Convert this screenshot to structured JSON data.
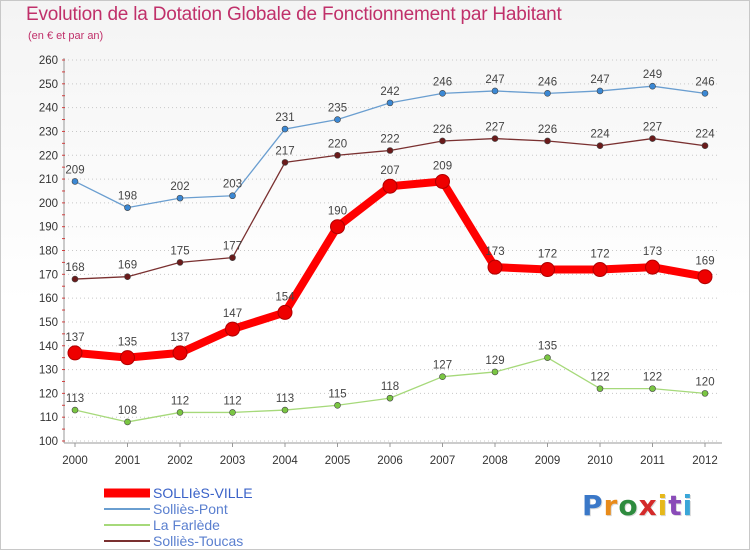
{
  "title": "Evolution de la Dotation Globale de Fonctionnement par Habitant",
  "subtitle": "(en € et par an)",
  "logo": {
    "text": "Proxiti",
    "letter_colors": [
      "#3a78c8",
      "#e88b1a",
      "#2e8b3e",
      "#d42a2a",
      "#e6b81a",
      "#8a4bb8",
      "#3aa6d8"
    ]
  },
  "chart_data": {
    "type": "line",
    "title": "Evolution de la Dotation Globale de Fonctionnement par Habitant",
    "subtitle": "(en € et par an)",
    "x": [
      "2000",
      "2001",
      "2002",
      "2003",
      "2004",
      "2005",
      "2006",
      "2007",
      "2008",
      "2009",
      "2010",
      "2011",
      "2012"
    ],
    "y_ticks": [
      "100",
      "110",
      "120",
      "130",
      "140",
      "150",
      "160",
      "170",
      "180",
      "190",
      "200",
      "210",
      "220",
      "230",
      "240",
      "250",
      "260"
    ],
    "ylim": [
      100,
      260
    ],
    "grid": "horizontal dotted",
    "legend_placement": "bottom-left",
    "series": [
      {
        "name": "SOLLIèS-VILLE",
        "color": "#ff0000",
        "highlight": true,
        "values": [
          137,
          135,
          137,
          147,
          154,
          190,
          207,
          209,
          173,
          172,
          172,
          173,
          169
        ],
        "labels": [
          "137",
          "135",
          "137",
          "147",
          "154",
          "190",
          "207",
          "209",
          "173",
          "172",
          "172",
          "173",
          "169"
        ]
      },
      {
        "name": "Solliès-Pont",
        "color": "#6a9ed0",
        "point_color": "#3b88d4",
        "highlight": false,
        "values": [
          209,
          198,
          202,
          203,
          231,
          235,
          242,
          246,
          247,
          246,
          247,
          249,
          246
        ],
        "labels": [
          "209",
          "198",
          "202",
          "203",
          "231",
          "235",
          "242",
          "246",
          "247",
          "246",
          "247",
          "249",
          "246"
        ]
      },
      {
        "name": "La Farlède",
        "color": "#a6d97a",
        "point_color": "#7ac642",
        "highlight": false,
        "values": [
          113,
          108,
          112,
          112,
          113,
          115,
          118,
          127,
          129,
          135,
          122,
          122,
          120
        ],
        "labels": [
          "113",
          "108",
          "112",
          "112",
          "113",
          "115",
          "118",
          "127",
          "129",
          "135",
          "122",
          "122",
          "120"
        ]
      },
      {
        "name": "Solliès-Toucas",
        "color": "#7a3030",
        "point_color": "#6a1a1a",
        "highlight": false,
        "values": [
          168,
          169,
          175,
          177,
          217,
          220,
          222,
          226,
          227,
          226,
          224,
          227,
          224
        ],
        "labels": [
          "168",
          "169",
          "175",
          "177",
          "217",
          "220",
          "222",
          "226",
          "227",
          "226",
          "224",
          "227",
          "224"
        ]
      }
    ]
  }
}
